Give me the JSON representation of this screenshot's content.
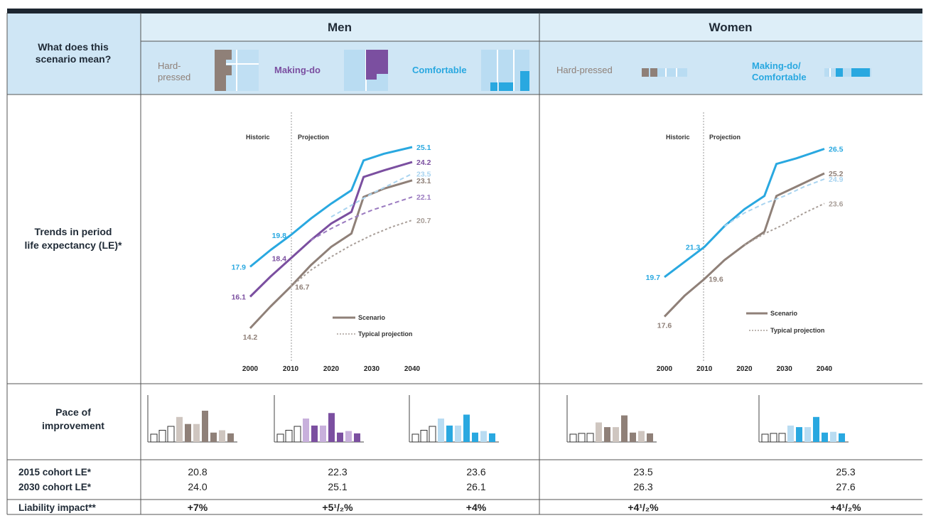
{
  "header": {
    "question_line1": "What does this",
    "question_line2": "scenario mean?",
    "men": "Men",
    "women": "Women",
    "men_scenarios": [
      "Hard-",
      "pressed",
      "Making-do",
      "Comfortable"
    ],
    "women_scenarios": [
      "Hard-pressed",
      "Making-do/",
      "Comfortable"
    ]
  },
  "rows": {
    "trends_line1": "Trends in period",
    "trends_line2": "life expectancy (LE)*",
    "pace_line1": "Pace of",
    "pace_line2": "improvement",
    "cohort2015": "2015 cohort LE*",
    "cohort2030": "2030 cohort LE*",
    "liability": "Liability impact**"
  },
  "colors": {
    "hard": "#8f8078",
    "making": "#7b4fa0",
    "comfortable": "#29a8e0",
    "header_bg": "#cfe6f5",
    "light_blue": "#b9dcf2"
  },
  "chart_data": [
    {
      "type": "line",
      "panel": "Men",
      "x_ticks": [
        2000,
        2010,
        2020,
        2030,
        2040
      ],
      "xlim": [
        2000,
        2040
      ],
      "ylim": [
        13,
        26
      ],
      "annotations": [
        "Historic",
        "Projection"
      ],
      "legend": [
        "Scenario",
        "Typical projection"
      ],
      "legend_position": "bottom-right",
      "series": [
        {
          "scenario": "Comfortable",
          "color": "#29a8e0",
          "style": "solid",
          "x": [
            2000,
            2005,
            2010,
            2015,
            2020,
            2025,
            2028,
            2033,
            2040
          ],
          "y": [
            17.9,
            18.9,
            19.8,
            20.8,
            21.7,
            22.5,
            24.3,
            24.7,
            25.1
          ]
        },
        {
          "scenario": "Making-do",
          "color": "#7b4fa0",
          "style": "solid",
          "x": [
            2000,
            2005,
            2010,
            2015,
            2020,
            2025,
            2028,
            2033,
            2040
          ],
          "y": [
            16.1,
            17.3,
            18.4,
            19.5,
            20.5,
            21.2,
            23.3,
            23.7,
            24.2
          ]
        },
        {
          "scenario": "Hard-pressed",
          "color": "#8f8078",
          "style": "solid",
          "x": [
            2000,
            2005,
            2010,
            2015,
            2020,
            2025,
            2028,
            2033,
            2040
          ],
          "y": [
            14.2,
            15.5,
            16.7,
            18.0,
            19.1,
            19.9,
            22.1,
            22.6,
            23.1
          ]
        },
        {
          "scenario": "Comfortable",
          "color": "#a9d4f0",
          "style": "dashed",
          "x": [
            2020,
            2025,
            2030,
            2035,
            2040
          ],
          "y": [
            20.9,
            21.6,
            22.3,
            22.9,
            23.5
          ]
        },
        {
          "scenario": "Making-do",
          "color": "#9b7bc0",
          "style": "dashed",
          "x": [
            2015,
            2020,
            2025,
            2030,
            2035,
            2040
          ],
          "y": [
            19.5,
            20.2,
            20.8,
            21.3,
            21.7,
            22.1
          ]
        },
        {
          "scenario": "Hard-pressed",
          "color": "#a89e98",
          "style": "dotted",
          "x": [
            2010,
            2015,
            2020,
            2025,
            2030,
            2035,
            2040
          ],
          "y": [
            16.7,
            17.7,
            18.5,
            19.2,
            19.8,
            20.3,
            20.7
          ]
        }
      ],
      "labels": [
        {
          "text": "25.1",
          "x": 2040,
          "y": 25.1,
          "color": "#29a8e0",
          "pos": "right"
        },
        {
          "text": "24.2",
          "x": 2040,
          "y": 24.2,
          "color": "#7b4fa0",
          "pos": "right"
        },
        {
          "text": "23.5",
          "x": 2040,
          "y": 23.5,
          "color": "#a9d4f0",
          "pos": "right"
        },
        {
          "text": "23.1",
          "x": 2040,
          "y": 23.1,
          "color": "#8f8078",
          "pos": "right"
        },
        {
          "text": "22.1",
          "x": 2040,
          "y": 22.1,
          "color": "#9b7bc0",
          "pos": "right"
        },
        {
          "text": "20.7",
          "x": 2040,
          "y": 20.7,
          "color": "#a89e98",
          "pos": "right"
        },
        {
          "text": "19.8",
          "x": 2010,
          "y": 19.8,
          "color": "#29a8e0",
          "pos": "left"
        },
        {
          "text": "17.9",
          "x": 2000,
          "y": 17.9,
          "color": "#29a8e0",
          "pos": "left"
        },
        {
          "text": "18.4",
          "x": 2010,
          "y": 18.4,
          "color": "#7b4fa0",
          "pos": "left"
        },
        {
          "text": "16.7",
          "x": 2010,
          "y": 16.7,
          "color": "#8f8078",
          "pos": "right"
        },
        {
          "text": "16.1",
          "x": 2000,
          "y": 16.1,
          "color": "#7b4fa0",
          "pos": "left"
        },
        {
          "text": "14.2",
          "x": 2000,
          "y": 14.2,
          "color": "#8f8078",
          "pos": "below"
        }
      ]
    },
    {
      "type": "line",
      "panel": "Women",
      "x_ticks": [
        2000,
        2010,
        2020,
        2030,
        2040
      ],
      "xlim": [
        2000,
        2040
      ],
      "ylim": [
        16,
        27.5
      ],
      "annotations": [
        "Historic",
        "Projection"
      ],
      "legend": [
        "Scenario",
        "Typical projection"
      ],
      "legend_position": "bottom-right",
      "series": [
        {
          "scenario": "Making-do/Comfortable",
          "color": "#29a8e0",
          "style": "solid",
          "x": [
            2000,
            2005,
            2010,
            2015,
            2020,
            2025,
            2028,
            2033,
            2040
          ],
          "y": [
            19.7,
            20.5,
            21.3,
            22.4,
            23.3,
            24.0,
            25.7,
            26.0,
            26.5
          ]
        },
        {
          "scenario": "Hard-pressed",
          "color": "#8f8078",
          "style": "solid",
          "x": [
            2000,
            2005,
            2010,
            2015,
            2020,
            2025,
            2028,
            2033,
            2040
          ],
          "y": [
            17.6,
            18.7,
            19.6,
            20.6,
            21.4,
            22.1,
            24.0,
            24.5,
            25.2
          ]
        },
        {
          "scenario": "Making-do/Comfortable",
          "color": "#a9d4f0",
          "style": "dashed",
          "x": [
            2015,
            2020,
            2025,
            2030,
            2035,
            2040
          ],
          "y": [
            22.4,
            23.1,
            23.6,
            24.0,
            24.5,
            24.9
          ]
        },
        {
          "scenario": "Hard-pressed",
          "color": "#a89e98",
          "style": "dotted",
          "x": [
            2020,
            2025,
            2030,
            2035,
            2040
          ],
          "y": [
            21.4,
            22.0,
            22.5,
            23.1,
            23.6
          ]
        }
      ],
      "labels": [
        {
          "text": "26.5",
          "x": 2040,
          "y": 26.5,
          "color": "#29a8e0",
          "pos": "right"
        },
        {
          "text": "25.2",
          "x": 2040,
          "y": 25.2,
          "color": "#8f8078",
          "pos": "right"
        },
        {
          "text": "24.9",
          "x": 2040,
          "y": 24.9,
          "color": "#a9d4f0",
          "pos": "right"
        },
        {
          "text": "23.6",
          "x": 2040,
          "y": 23.6,
          "color": "#a89e98",
          "pos": "right"
        },
        {
          "text": "21.3",
          "x": 2010,
          "y": 21.3,
          "color": "#29a8e0",
          "pos": "left"
        },
        {
          "text": "19.7",
          "x": 2000,
          "y": 19.7,
          "color": "#29a8e0",
          "pos": "left"
        },
        {
          "text": "19.6",
          "x": 2010,
          "y": 19.6,
          "color": "#8f8078",
          "pos": "right"
        },
        {
          "text": "17.6",
          "x": 2000,
          "y": 17.6,
          "color": "#8f8078",
          "pos": "below"
        }
      ]
    },
    {
      "type": "bar",
      "panel": "Pace of improvement",
      "bars_per_group": 10,
      "groups": [
        {
          "name": "Men Hard-pressed",
          "color": "#8f8078",
          "light": "#cfc6c0",
          "values": [
            1,
            1.5,
            2,
            3.2,
            2.3,
            2.3,
            4,
            1.2,
            1.5,
            1.1
          ]
        },
        {
          "name": "Men Making-do",
          "color": "#7b4fa0",
          "light": "#c8b0dc",
          "values": [
            1,
            1.5,
            2,
            3.0,
            2.1,
            2.1,
            3.7,
            1.2,
            1.4,
            1.1
          ]
        },
        {
          "name": "Men Comfortable",
          "color": "#29a8e0",
          "light": "#b9dcf2",
          "values": [
            1,
            1.5,
            2,
            3.0,
            2.1,
            2.1,
            3.5,
            1.2,
            1.4,
            1.1
          ]
        },
        {
          "name": "Women Hard-pressed",
          "color": "#8f8078",
          "light": "#cfc6c0",
          "values": [
            1,
            1.1,
            1.1,
            2.5,
            1.9,
            1.9,
            3.4,
            1.2,
            1.4,
            1.1
          ]
        },
        {
          "name": "Women Making-do/Comfortable",
          "color": "#29a8e0",
          "light": "#b9dcf2",
          "values": [
            1,
            1.1,
            1.1,
            2.1,
            1.9,
            1.9,
            3.2,
            1.2,
            1.3,
            1.1
          ]
        }
      ]
    }
  ],
  "table": {
    "cohort2015": [
      "20.8",
      "22.3",
      "23.6",
      "23.5",
      "25.3"
    ],
    "cohort2030": [
      "24.0",
      "25.1",
      "26.1",
      "26.3",
      "27.6"
    ],
    "liability": [
      "+7%",
      "+5¹/₂%",
      "+4%",
      "+4¹/₂%",
      "+4¹/₂%"
    ]
  }
}
